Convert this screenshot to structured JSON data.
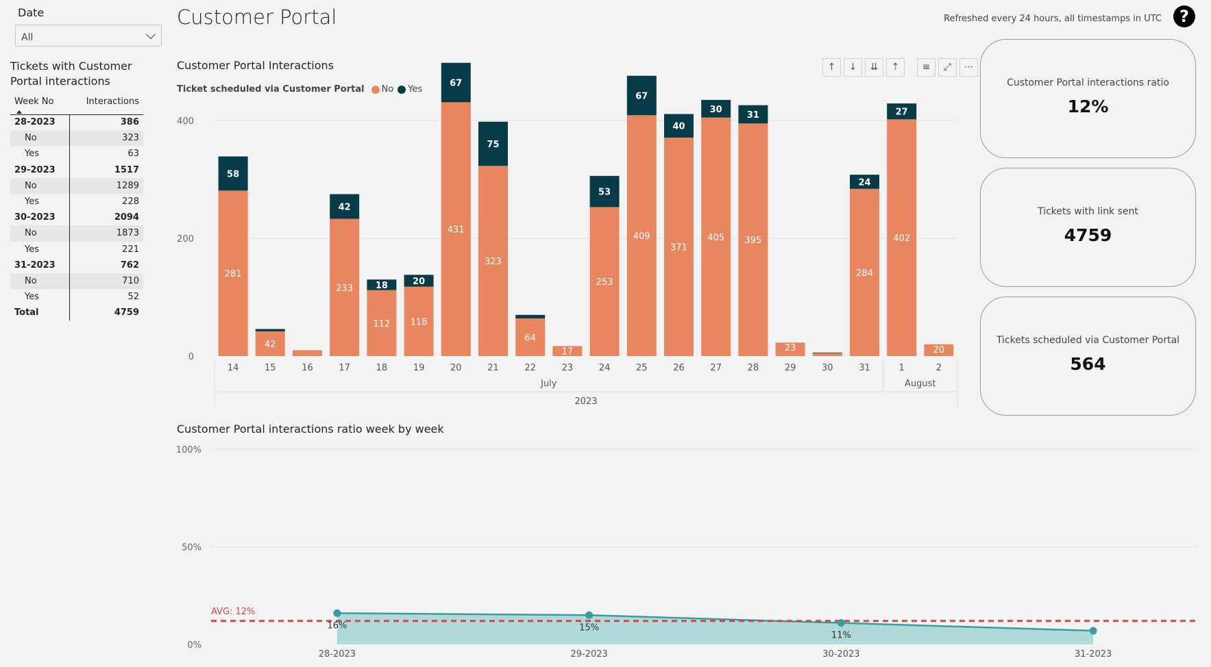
{
  "filter": {
    "label": "Date",
    "value": "All"
  },
  "table": {
    "title": "Tickets with Customer Portal interactions",
    "headers": [
      "Week No",
      "Interactions"
    ],
    "rows": [
      {
        "label": "28-2023",
        "value": "386",
        "type": "group"
      },
      {
        "label": "No",
        "value": "323",
        "type": "sub"
      },
      {
        "label": "Yes",
        "value": "63",
        "type": "sub"
      },
      {
        "label": "29-2023",
        "value": "1517",
        "type": "group"
      },
      {
        "label": "No",
        "value": "1289",
        "type": "sub"
      },
      {
        "label": "Yes",
        "value": "228",
        "type": "sub"
      },
      {
        "label": "30-2023",
        "value": "2094",
        "type": "group"
      },
      {
        "label": "No",
        "value": "1873",
        "type": "sub"
      },
      {
        "label": "Yes",
        "value": "221",
        "type": "sub"
      },
      {
        "label": "31-2023",
        "value": "762",
        "type": "group"
      },
      {
        "label": "No",
        "value": "710",
        "type": "sub"
      },
      {
        "label": "Yes",
        "value": "52",
        "type": "sub"
      },
      {
        "label": "Total",
        "value": "4759",
        "type": "total"
      }
    ]
  },
  "header": {
    "title": "Customer Portal",
    "refresh_note": "Refreshed every 24 hours, all timestamps in UTC",
    "help_icon": "question-circle-icon"
  },
  "bar_chart": {
    "title": "Customer Portal Interactions",
    "legend_title": "Ticket scheduled via Customer Portal",
    "legend": [
      {
        "name": "No",
        "color": "#E8875F"
      },
      {
        "name": "Yes",
        "color": "#073B47"
      }
    ],
    "toolbar_icons": [
      "sort-ascending-icon",
      "sort-descending-icon",
      "expand-all-icon",
      "drill-up-icon",
      "filter-icon",
      "focus-mode-icon",
      "more-options-icon"
    ]
  },
  "cards": [
    {
      "label": "Customer Portal interactions ratio",
      "value": "12%"
    },
    {
      "label": "Tickets with link sent",
      "value": "4759"
    },
    {
      "label": "Tickets scheduled via Customer Portal",
      "value": "564"
    }
  ],
  "line_chart": {
    "title": "Customer Portal interactions ratio week by week",
    "avg_label": "AVG: 12%"
  },
  "colors": {
    "no": "#E8875F",
    "yes": "#073B47",
    "line": "#3A9CA0",
    "area": "#A9D6D6",
    "avg": "#D64545"
  },
  "chart_data": [
    {
      "type": "bar",
      "stacked": true,
      "title": "Customer Portal Interactions",
      "categories": [
        "14",
        "15",
        "16",
        "17",
        "18",
        "19",
        "20",
        "21",
        "22",
        "23",
        "24",
        "25",
        "26",
        "27",
        "28",
        "29",
        "30",
        "31",
        "1",
        "2"
      ],
      "x_groups": [
        {
          "label": "July",
          "from": "14",
          "to": "31"
        },
        {
          "label": "August",
          "from": "1",
          "to": "2"
        }
      ],
      "x_year": "2023",
      "series": [
        {
          "name": "No",
          "values": [
            281,
            42,
            10,
            233,
            112,
            118,
            431,
            323,
            64,
            17,
            253,
            409,
            371,
            405,
            395,
            23,
            5,
            284,
            402,
            20
          ]
        },
        {
          "name": "Yes",
          "values": [
            58,
            4,
            0,
            42,
            18,
            20,
            67,
            75,
            6,
            0,
            53,
            67,
            40,
            30,
            31,
            0,
            1,
            24,
            27,
            0
          ]
        }
      ],
      "no_labels": [
        "281",
        "42",
        "",
        "233",
        "112",
        "118",
        "431",
        "323",
        "64",
        "17",
        "253",
        "409",
        "371",
        "405",
        "395",
        "23",
        "",
        "284",
        "402",
        "20"
      ],
      "yes_labels": [
        "58",
        "",
        "",
        "42",
        "18",
        "20",
        "67",
        "75",
        "",
        "",
        "53",
        "67",
        "40",
        "30",
        "31",
        "",
        "",
        "24",
        "27",
        ""
      ],
      "yticks": [
        "0",
        "200",
        "400"
      ],
      "ylim": [
        0,
        500
      ],
      "grid": true
    },
    {
      "type": "area",
      "title": "Customer Portal interactions ratio week by week",
      "categories": [
        "28-2023",
        "29-2023",
        "30-2023",
        "31-2023"
      ],
      "values": [
        16,
        15,
        11,
        7
      ],
      "value_labels": [
        "16%",
        "15%",
        "11%",
        ""
      ],
      "yticks": [
        "0%",
        "50%",
        "100%"
      ],
      "ylim": [
        0,
        100
      ],
      "reference_line": {
        "label": "AVG: 12%",
        "value": 12
      },
      "grid": true
    }
  ]
}
